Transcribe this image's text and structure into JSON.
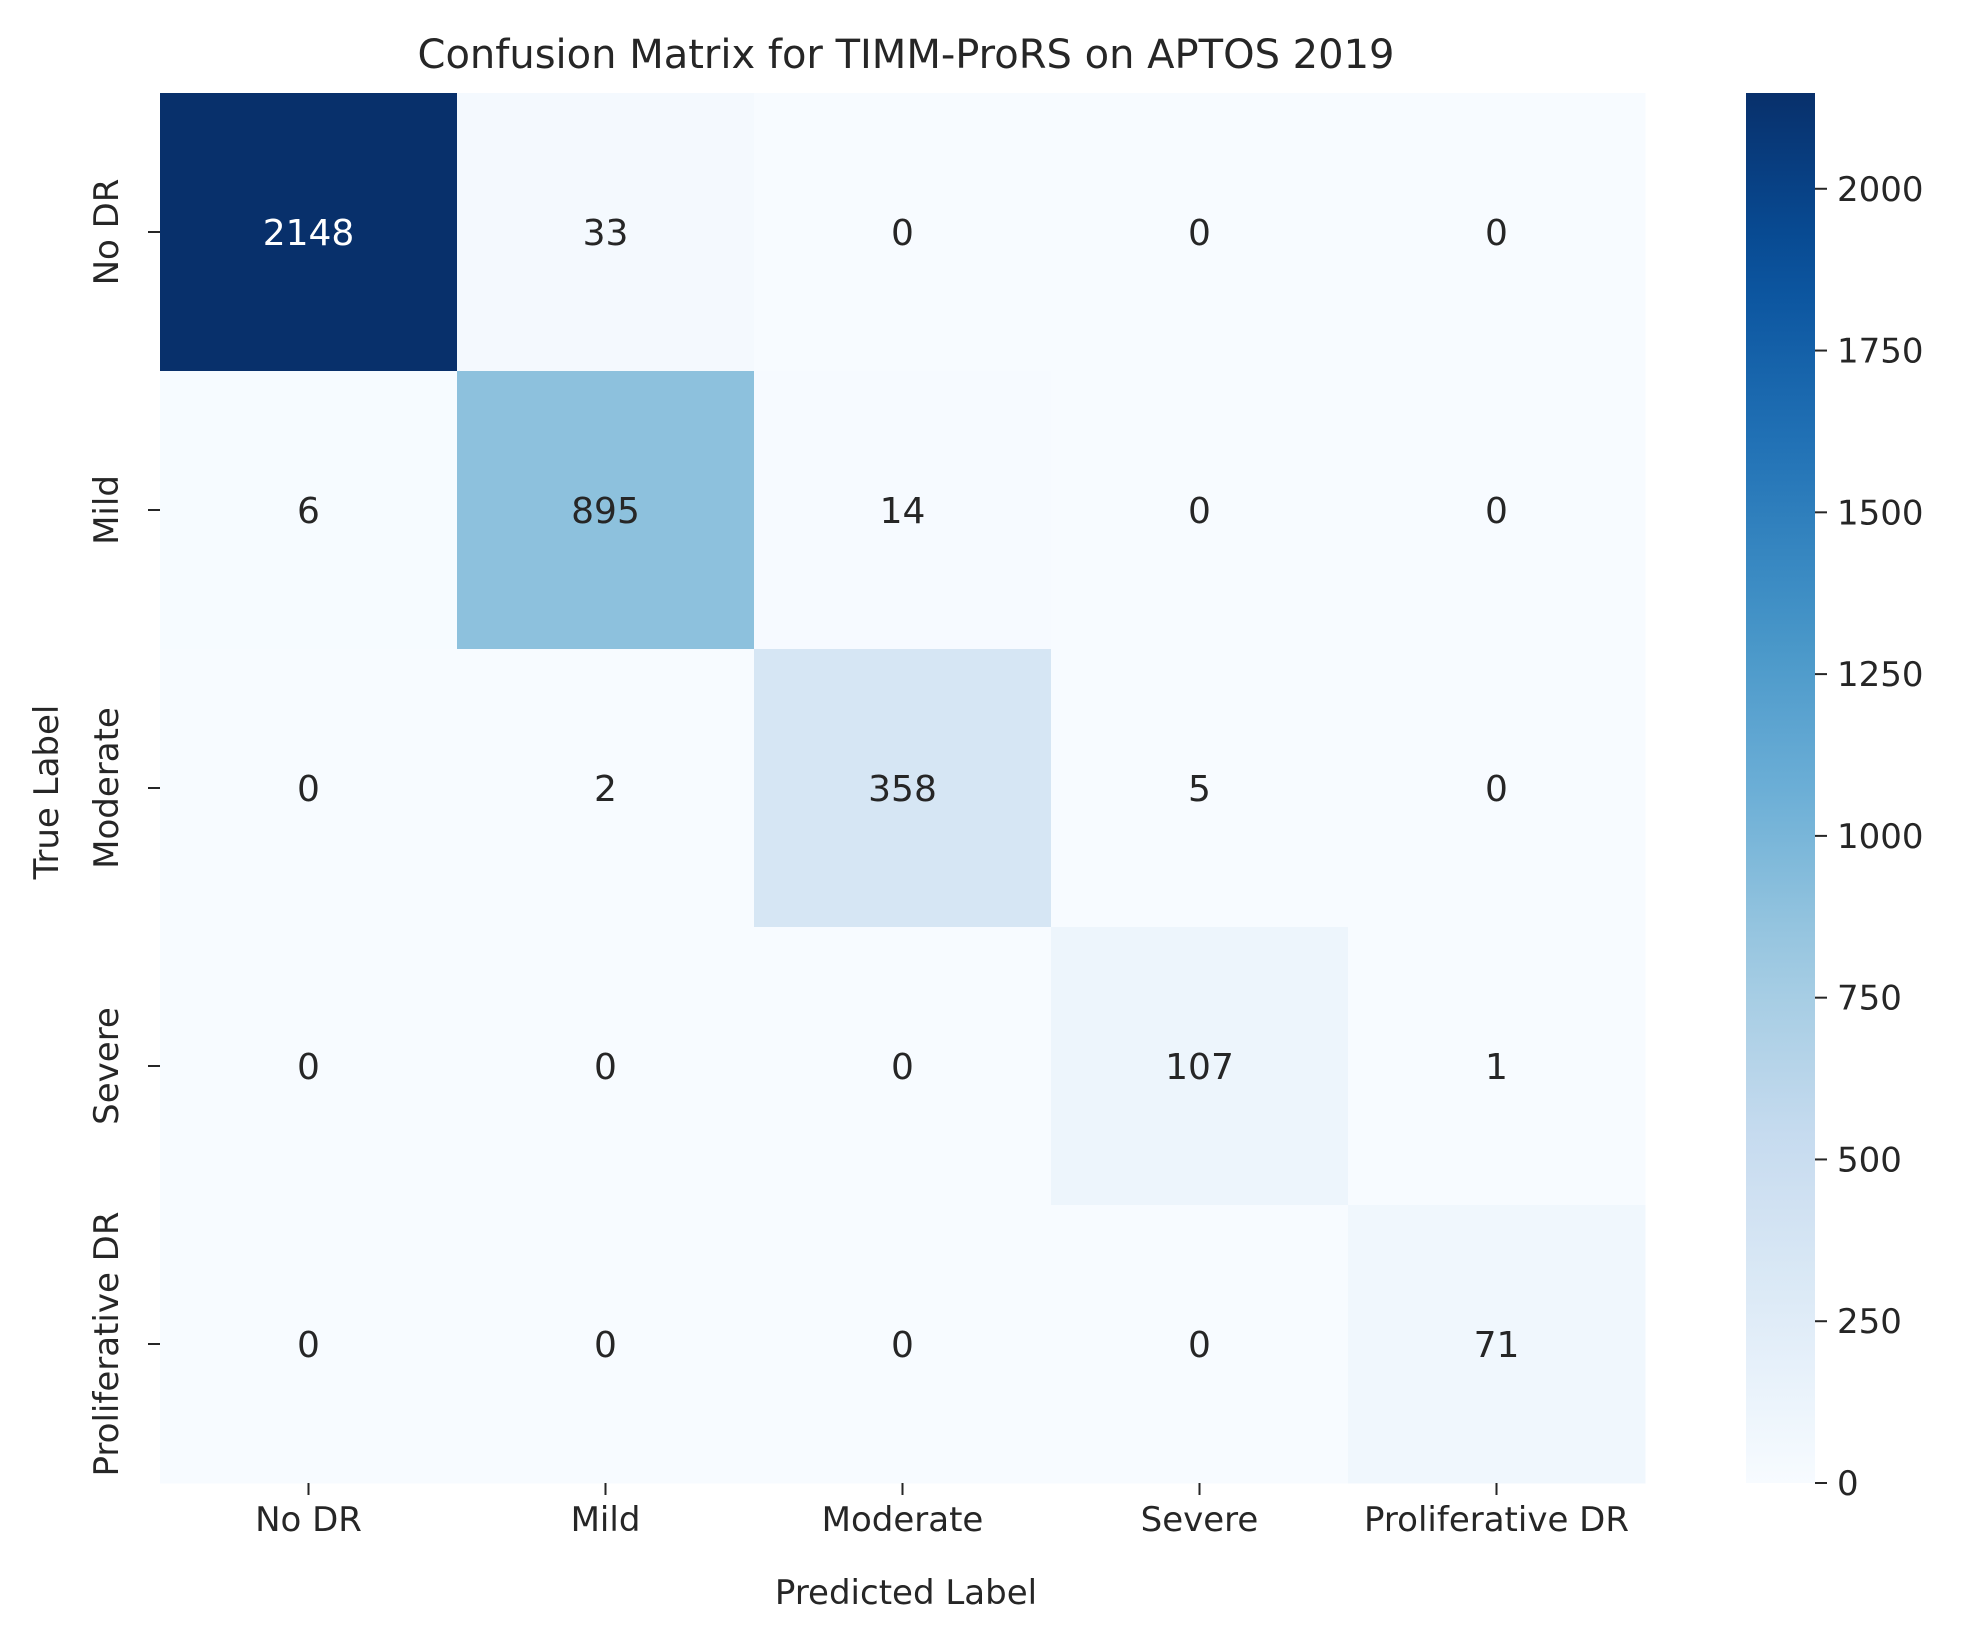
{
  "chart_data": {
    "type": "heatmap",
    "title": "Confusion Matrix for TIMM-ProRS on APTOS 2019",
    "xlabel": "Predicted Label",
    "ylabel": "True Label",
    "x_categories": [
      "No DR",
      "Mild",
      "Moderate",
      "Severe",
      "Proliferative DR"
    ],
    "y_categories": [
      "No DR",
      "Mild",
      "Moderate",
      "Severe",
      "Proliferative DR"
    ],
    "matrix": [
      [
        2148,
        33,
        0,
        0,
        0
      ],
      [
        6,
        895,
        14,
        0,
        0
      ],
      [
        0,
        2,
        358,
        5,
        0
      ],
      [
        0,
        0,
        0,
        107,
        1
      ],
      [
        0,
        0,
        0,
        0,
        71
      ]
    ],
    "colorbar": {
      "colormap": "Blues",
      "range": [
        0,
        2148
      ],
      "ticks": [
        0,
        250,
        500,
        750,
        1000,
        1250,
        1500,
        1750,
        2000
      ],
      "tick_labels": [
        "0",
        "250",
        "500",
        "750",
        "1000",
        "1250",
        "1500",
        "1750",
        "2000"
      ]
    },
    "colors": {
      "low": "#f7fbff",
      "high": "#08306b",
      "text_dark": "#262626",
      "text_light": "#ffffff"
    }
  }
}
